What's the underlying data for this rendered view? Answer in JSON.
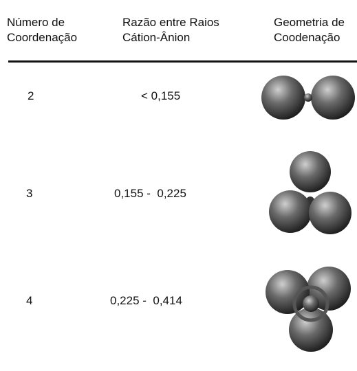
{
  "table": {
    "header": [
      "Número de\nCoordenação",
      "Razão entre Raios\nCátion-Ânion",
      "Geometria de\nCoodenação"
    ],
    "rows": [
      [
        "2",
        "< 0,155"
      ],
      [
        "3",
        "0,155 -  0,225"
      ],
      [
        "4",
        "0,225 -  0,414"
      ]
    ]
  }
}
